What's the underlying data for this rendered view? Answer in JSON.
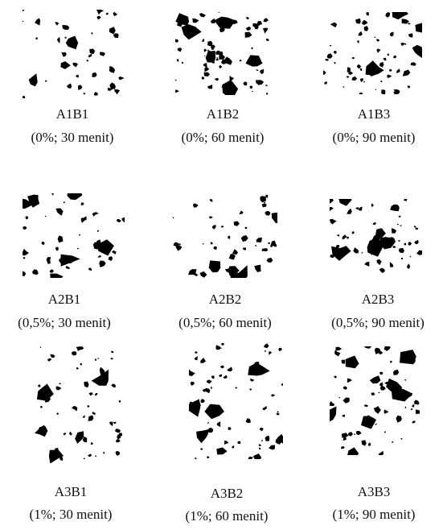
{
  "panels": [
    {
      "code": "A1B1",
      "caption": "(0%; 30 menit)"
    },
    {
      "code": "A1B2",
      "caption": "(0%; 60 menit)"
    },
    {
      "code": "A1B3",
      "caption": "(0%; 90 menit)"
    },
    {
      "code": "A2B1",
      "caption": "(0,5%; 30 menit)"
    },
    {
      "code": "A2B2",
      "caption": "(0,5%; 60 menit)"
    },
    {
      "code": "A2B3",
      "caption": "(0,5%; 90 menit)"
    },
    {
      "code": "A3B1",
      "caption": "(1%; 30 menit)"
    },
    {
      "code": "A3B2",
      "caption": "(1%; 60 menit)"
    },
    {
      "code": "A3B3",
      "caption": "(1%; 90 menit)"
    }
  ]
}
